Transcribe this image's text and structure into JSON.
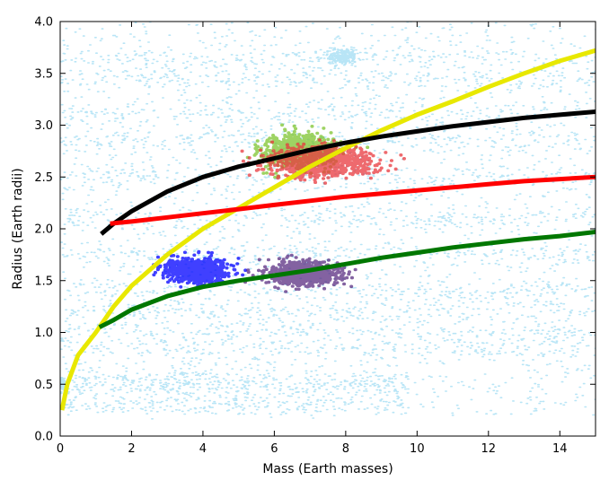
{
  "chart_data": {
    "type": "scatter",
    "xlabel": "Mass (Earth masses)",
    "ylabel": "Radius (Earth radii)",
    "xlim": [
      0,
      15
    ],
    "ylim": [
      0.0,
      4.0
    ],
    "xticks": [
      0,
      2,
      4,
      6,
      8,
      10,
      12,
      14
    ],
    "xtick_labels": [
      "0",
      "2",
      "4",
      "6",
      "8",
      "10",
      "12",
      "14"
    ],
    "yticks": [
      0.0,
      0.5,
      1.0,
      1.5,
      2.0,
      2.5,
      3.0,
      3.5,
      4.0
    ],
    "ytick_labels": [
      "0.0",
      "0.5",
      "1.0",
      "1.5",
      "2.0",
      "2.5",
      "3.0",
      "3.5",
      "4.0"
    ],
    "grid": false,
    "legend": "none",
    "background_cloud": {
      "color": "#33b5e5",
      "description_bands_y": [
        0.3,
        0.47,
        0.55,
        0.85,
        1.0,
        1.2,
        1.4,
        1.75,
        2.1,
        2.5,
        2.85,
        3.1,
        3.45,
        3.65
      ]
    },
    "series": [
      {
        "color": "#0000ff",
        "kind": "cluster",
        "center": [
          3.8,
          1.6
        ],
        "spread": [
          0.75,
          0.09
        ]
      },
      {
        "color": "#5a2d82",
        "kind": "cluster",
        "center": [
          6.8,
          1.57
        ],
        "spread": [
          0.9,
          0.09
        ]
      },
      {
        "color": "#7dc42f",
        "kind": "cluster",
        "center": [
          6.7,
          2.75
        ],
        "spread": [
          0.9,
          0.13
        ]
      },
      {
        "color": "#e8383d",
        "kind": "cluster",
        "center": [
          7.3,
          2.65
        ],
        "spread": [
          1.3,
          0.12
        ]
      }
    ],
    "curves": [
      {
        "color": "#ffff00",
        "stroke": "#e8e800",
        "points": [
          [
            0.05,
            0.25
          ],
          [
            0.2,
            0.5
          ],
          [
            0.5,
            0.78
          ],
          [
            1.0,
            1.0
          ],
          [
            1.5,
            1.25
          ],
          [
            2.0,
            1.45
          ],
          [
            3.0,
            1.75
          ],
          [
            4.0,
            2.0
          ],
          [
            5.0,
            2.2
          ],
          [
            6.0,
            2.4
          ],
          [
            7.0,
            2.6
          ],
          [
            8.0,
            2.78
          ],
          [
            9.0,
            2.95
          ],
          [
            10.0,
            3.1
          ],
          [
            11.0,
            3.23
          ],
          [
            12.0,
            3.37
          ],
          [
            13.0,
            3.5
          ],
          [
            14.0,
            3.62
          ],
          [
            15.0,
            3.72
          ]
        ]
      },
      {
        "color": "#000000",
        "points": [
          [
            1.15,
            1.95
          ],
          [
            1.5,
            2.05
          ],
          [
            2.0,
            2.17
          ],
          [
            3.0,
            2.36
          ],
          [
            4.0,
            2.5
          ],
          [
            5.0,
            2.6
          ],
          [
            6.0,
            2.68
          ],
          [
            7.0,
            2.76
          ],
          [
            8.0,
            2.83
          ],
          [
            9.0,
            2.89
          ],
          [
            10.0,
            2.94
          ],
          [
            11.0,
            2.99
          ],
          [
            12.0,
            3.03
          ],
          [
            13.0,
            3.07
          ],
          [
            14.0,
            3.1
          ],
          [
            15.0,
            3.13
          ]
        ]
      },
      {
        "color": "#ff0000",
        "points": [
          [
            1.4,
            2.05
          ],
          [
            2.0,
            2.07
          ],
          [
            3.0,
            2.11
          ],
          [
            4.0,
            2.15
          ],
          [
            5.0,
            2.19
          ],
          [
            6.0,
            2.23
          ],
          [
            7.0,
            2.27
          ],
          [
            8.0,
            2.31
          ],
          [
            9.0,
            2.34
          ],
          [
            10.0,
            2.37
          ],
          [
            11.0,
            2.4
          ],
          [
            12.0,
            2.43
          ],
          [
            13.0,
            2.46
          ],
          [
            14.0,
            2.48
          ],
          [
            15.0,
            2.5
          ]
        ]
      },
      {
        "color": "#007700",
        "points": [
          [
            1.1,
            1.05
          ],
          [
            1.5,
            1.12
          ],
          [
            2.0,
            1.22
          ],
          [
            3.0,
            1.35
          ],
          [
            4.0,
            1.44
          ],
          [
            5.0,
            1.5
          ],
          [
            6.0,
            1.55
          ],
          [
            7.0,
            1.6
          ],
          [
            8.0,
            1.66
          ],
          [
            9.0,
            1.72
          ],
          [
            10.0,
            1.77
          ],
          [
            11.0,
            1.82
          ],
          [
            12.0,
            1.86
          ],
          [
            13.0,
            1.9
          ],
          [
            14.0,
            1.93
          ],
          [
            15.0,
            1.97
          ]
        ]
      }
    ]
  }
}
